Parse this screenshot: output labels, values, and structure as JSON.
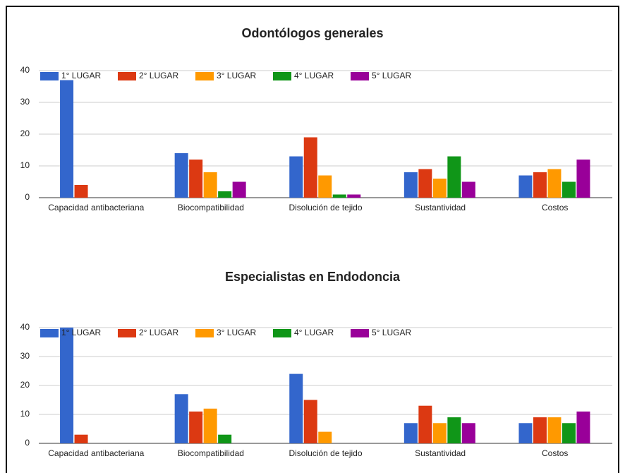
{
  "chart_data": [
    {
      "type": "bar",
      "title": "Odontólogos generales",
      "categories": [
        "Capacidad antibacteriana",
        "Biocompatibilidad",
        "Disolución de tejido",
        "Sustantividad",
        "Costos"
      ],
      "series": [
        {
          "name": "1° LUGAR",
          "color": "#3366cc",
          "values": [
            37,
            14,
            13,
            8,
            7
          ]
        },
        {
          "name": "2° LUGAR",
          "color": "#dc3912",
          "values": [
            4,
            12,
            19,
            9,
            8
          ]
        },
        {
          "name": "3° LUGAR",
          "color": "#ff9900",
          "values": [
            0,
            8,
            7,
            6,
            9
          ]
        },
        {
          "name": "4° LUGAR",
          "color": "#109618",
          "values": [
            0,
            2,
            1,
            13,
            5
          ]
        },
        {
          "name": "5° LUGAR",
          "color": "#990099",
          "values": [
            0,
            5,
            1,
            5,
            12
          ]
        }
      ],
      "ylim": [
        0,
        40
      ],
      "yticks": [
        0,
        10,
        20,
        30,
        40
      ],
      "grid": true,
      "legend": "top"
    },
    {
      "type": "bar",
      "title": "Especialistas en Endodoncia",
      "categories": [
        "Capacidad antibacteriana",
        "Biocompatibilidad",
        "Disolución de tejido",
        "Sustantividad",
        "Costos"
      ],
      "series": [
        {
          "name": "1° LUGAR",
          "color": "#3366cc",
          "values": [
            40,
            17,
            24,
            7,
            7
          ]
        },
        {
          "name": "2° LUGAR",
          "color": "#dc3912",
          "values": [
            3,
            11,
            15,
            13,
            9
          ]
        },
        {
          "name": "3° LUGAR",
          "color": "#ff9900",
          "values": [
            0,
            12,
            4,
            7,
            9
          ]
        },
        {
          "name": "4° LUGAR",
          "color": "#109618",
          "values": [
            0,
            3,
            0,
            9,
            7
          ]
        },
        {
          "name": "5° LUGAR",
          "color": "#990099",
          "values": [
            0,
            0,
            0,
            7,
            11
          ]
        }
      ],
      "ylim": [
        0,
        40
      ],
      "yticks": [
        0,
        10,
        20,
        30,
        40
      ],
      "grid": true,
      "legend": "top"
    }
  ]
}
